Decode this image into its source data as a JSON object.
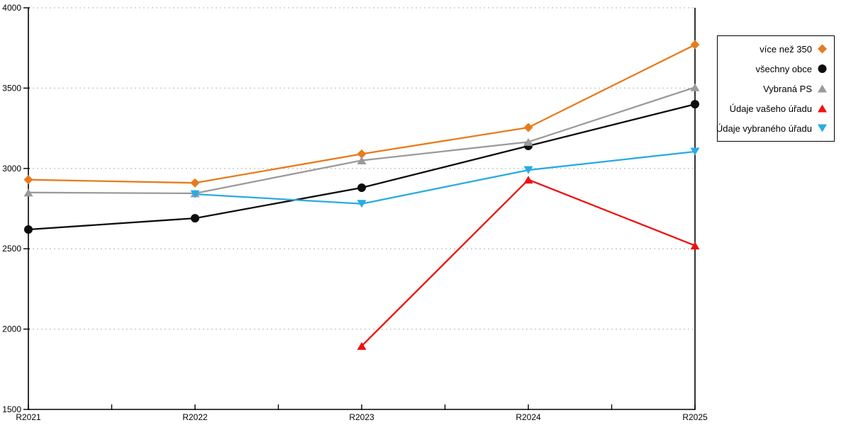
{
  "page": {
    "background_color": "#ffffff"
  },
  "chart_data": {
    "type": "line",
    "title": "",
    "xlabel": "",
    "ylabel": "",
    "categories": [
      "R2021",
      "R2022",
      "R2023",
      "R2024",
      "R2025"
    ],
    "y_ticks": [
      1500,
      2000,
      2500,
      3000,
      3500,
      4000
    ],
    "ylim": [
      1500,
      4000
    ],
    "grid": "horizontal-dotted",
    "grid_color": "#c4c4c4",
    "axis_color": "#000000",
    "legend_position": "right-outside-top",
    "series": [
      {
        "name": "více než 350",
        "marker": "diamond",
        "color": "#e67c1e",
        "values": [
          2930,
          2910,
          3090,
          3255,
          3770
        ]
      },
      {
        "name": "všechny obce",
        "marker": "circle",
        "color": "#0d0d0d",
        "values": [
          2620,
          2690,
          2880,
          3140,
          3400
        ]
      },
      {
        "name": "Vybraná PS",
        "marker": "triangle-up",
        "color": "#9b9b9b",
        "values": [
          2850,
          2845,
          3050,
          3165,
          3505
        ]
      },
      {
        "name": "Údaje vašeho úřadu",
        "marker": "triangle-up",
        "color": "#ee1111",
        "values": [
          null,
          null,
          1895,
          2930,
          2520
        ]
      },
      {
        "name": "Údaje vybraného úřadu",
        "marker": "triangle-down",
        "color": "#29abe2",
        "values": [
          null,
          2840,
          2780,
          2990,
          3105
        ]
      }
    ]
  }
}
